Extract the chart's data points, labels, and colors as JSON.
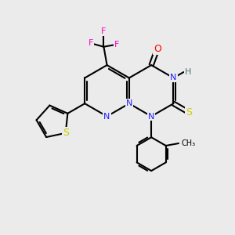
{
  "background_color": "#ebebeb",
  "atom_colors": {
    "C": "#000000",
    "N": "#2020ff",
    "O": "#ff0000",
    "S": "#cccc00",
    "F": "#ff00cc",
    "H": "#507070"
  },
  "figsize": [
    3.0,
    3.0
  ],
  "dpi": 100,
  "lw": 1.5
}
